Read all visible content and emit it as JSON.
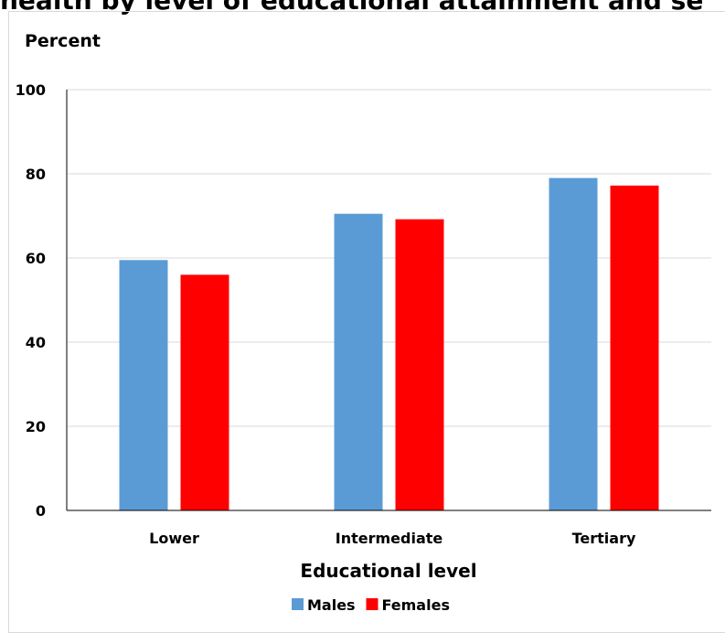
{
  "header": {
    "title": "health by level of educational attainment and se"
  },
  "chart_data": {
    "type": "bar",
    "ylabel": "Percent",
    "xlabel": "Educational level",
    "categories": [
      "Lower",
      "Intermediate",
      "Tertiary"
    ],
    "series": [
      {
        "name": "Males",
        "values": [
          59.5,
          70.5,
          79.0
        ],
        "color": "#5b9bd5"
      },
      {
        "name": "Females",
        "values": [
          56.0,
          69.2,
          77.2
        ],
        "color": "#ff0000"
      }
    ],
    "ylim": [
      0,
      100
    ],
    "yticks": [
      0,
      20,
      40,
      60,
      80,
      100
    ],
    "grid": true,
    "legend": "bottom"
  }
}
